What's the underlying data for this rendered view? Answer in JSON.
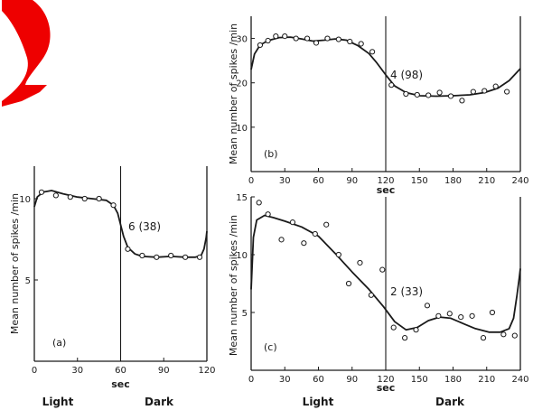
{
  "chart_data": [
    {
      "type": "scatter",
      "panel": "(a)",
      "annotation": "6 (38)",
      "ylabel": "Mean number of spikes /min",
      "xlabel": "sec",
      "xlim": [
        0,
        120
      ],
      "ylim": [
        0,
        12
      ],
      "xticks": [
        0,
        30,
        60,
        90,
        120
      ],
      "yticks": [
        5,
        10
      ],
      "divider_x": 60,
      "points": [
        [
          5,
          10.4
        ],
        [
          15,
          10.2
        ],
        [
          25,
          10.1
        ],
        [
          35,
          10.0
        ],
        [
          45,
          10.0
        ],
        [
          55,
          9.6
        ],
        [
          65,
          6.9
        ],
        [
          75,
          6.5
        ],
        [
          85,
          6.4
        ],
        [
          95,
          6.5
        ],
        [
          105,
          6.4
        ],
        [
          115,
          6.4
        ]
      ],
      "curve": [
        [
          0,
          9.5
        ],
        [
          2,
          10.1
        ],
        [
          6,
          10.4
        ],
        [
          12,
          10.5
        ],
        [
          20,
          10.3
        ],
        [
          30,
          10.1
        ],
        [
          40,
          10.0
        ],
        [
          50,
          9.9
        ],
        [
          55,
          9.6
        ],
        [
          58,
          9.1
        ],
        [
          60,
          8.4
        ],
        [
          62,
          7.7
        ],
        [
          65,
          7.0
        ],
        [
          70,
          6.6
        ],
        [
          75,
          6.45
        ],
        [
          85,
          6.4
        ],
        [
          95,
          6.45
        ],
        [
          105,
          6.4
        ],
        [
          112,
          6.4
        ],
        [
          116,
          6.5
        ],
        [
          118,
          6.9
        ],
        [
          119.5,
          7.6
        ],
        [
          120,
          8.0
        ]
      ]
    },
    {
      "type": "scatter",
      "panel": "(b)",
      "annotation": "4 (98)",
      "ylabel": "Mean number of spikes /min",
      "xlabel": "sec",
      "xlim": [
        0,
        240
      ],
      "ylim": [
        0,
        35
      ],
      "xticks": [
        0,
        30,
        60,
        90,
        120,
        150,
        180,
        210,
        240
      ],
      "yticks": [
        10,
        20,
        30
      ],
      "divider_x": 120,
      "points": [
        [
          8,
          28.5
        ],
        [
          15,
          29.5
        ],
        [
          22,
          30.5
        ],
        [
          30,
          30.5
        ],
        [
          40,
          30.0
        ],
        [
          50,
          30.0
        ],
        [
          58,
          29.0
        ],
        [
          68,
          30.0
        ],
        [
          78,
          29.8
        ],
        [
          88,
          29.3
        ],
        [
          98,
          28.8
        ],
        [
          108,
          27.0
        ],
        [
          125,
          19.5
        ],
        [
          138,
          17.5
        ],
        [
          148,
          17.3
        ],
        [
          158,
          17.2
        ],
        [
          168,
          17.8
        ],
        [
          178,
          17.0
        ],
        [
          188,
          16.0
        ],
        [
          198,
          18.0
        ],
        [
          208,
          18.2
        ],
        [
          218,
          19.2
        ],
        [
          228,
          18.0
        ]
      ],
      "curve": [
        [
          0,
          23.0
        ],
        [
          3,
          26.5
        ],
        [
          8,
          28.5
        ],
        [
          15,
          29.5
        ],
        [
          25,
          30.2
        ],
        [
          35,
          30.3
        ],
        [
          45,
          29.9
        ],
        [
          55,
          29.4
        ],
        [
          65,
          29.6
        ],
        [
          75,
          29.9
        ],
        [
          85,
          29.6
        ],
        [
          95,
          28.4
        ],
        [
          105,
          26.6
        ],
        [
          112,
          24.5
        ],
        [
          120,
          21.8
        ],
        [
          128,
          19.3
        ],
        [
          138,
          17.8
        ],
        [
          150,
          17.1
        ],
        [
          165,
          17.0
        ],
        [
          180,
          17.1
        ],
        [
          195,
          17.3
        ],
        [
          208,
          17.8
        ],
        [
          220,
          18.8
        ],
        [
          230,
          20.5
        ],
        [
          240,
          23.2
        ]
      ]
    },
    {
      "type": "scatter",
      "panel": "(c)",
      "annotation": "2 (33)",
      "ylabel": "Mean number of spikes /min",
      "xlabel": "sec",
      "xlim": [
        0,
        240
      ],
      "ylim": [
        0,
        15
      ],
      "xticks": [
        0,
        30,
        60,
        90,
        120,
        150,
        180,
        210,
        240
      ],
      "yticks": [
        5,
        10,
        15
      ],
      "divider_x": 120,
      "points": [
        [
          7,
          14.5
        ],
        [
          15,
          13.5
        ],
        [
          27,
          11.3
        ],
        [
          37,
          12.8
        ],
        [
          47,
          11.0
        ],
        [
          57,
          11.8
        ],
        [
          67,
          12.6
        ],
        [
          78,
          10.0
        ],
        [
          87,
          7.5
        ],
        [
          97,
          9.3
        ],
        [
          107,
          6.5
        ],
        [
          117,
          8.7
        ],
        [
          127,
          3.7
        ],
        [
          137,
          2.8
        ],
        [
          147,
          3.5
        ],
        [
          157,
          5.6
        ],
        [
          167,
          4.7
        ],
        [
          177,
          4.9
        ],
        [
          187,
          4.6
        ],
        [
          197,
          4.7
        ],
        [
          207,
          2.8
        ],
        [
          215,
          5.0
        ],
        [
          225,
          3.1
        ],
        [
          235,
          3.0
        ]
      ],
      "curve": [
        [
          0,
          7.0
        ],
        [
          2,
          11.5
        ],
        [
          5,
          13.0
        ],
        [
          12,
          13.4
        ],
        [
          20,
          13.2
        ],
        [
          30,
          12.9
        ],
        [
          45,
          12.4
        ],
        [
          60,
          11.6
        ],
        [
          75,
          10.1
        ],
        [
          90,
          8.5
        ],
        [
          105,
          7.0
        ],
        [
          118,
          5.5
        ],
        [
          128,
          4.2
        ],
        [
          138,
          3.5
        ],
        [
          148,
          3.7
        ],
        [
          158,
          4.3
        ],
        [
          168,
          4.6
        ],
        [
          178,
          4.5
        ],
        [
          190,
          4.0
        ],
        [
          200,
          3.6
        ],
        [
          212,
          3.3
        ],
        [
          222,
          3.3
        ],
        [
          230,
          3.6
        ],
        [
          234,
          4.5
        ],
        [
          237,
          6.5
        ],
        [
          239,
          8.0
        ],
        [
          240,
          8.8
        ]
      ]
    }
  ],
  "labels": {
    "left_light": "Light",
    "left_dark": "Dark",
    "right_light": "Light",
    "right_dark": "Dark"
  }
}
